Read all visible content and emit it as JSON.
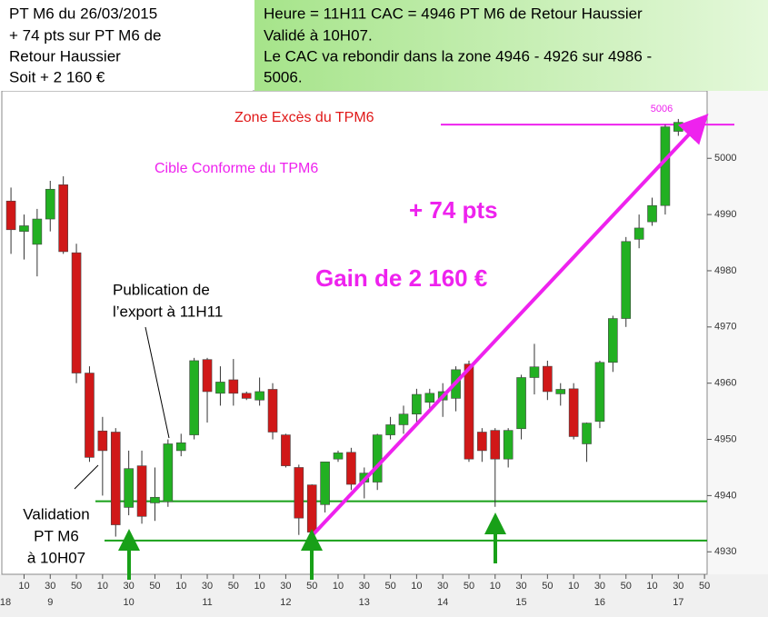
{
  "chart_data": {
    "type": "candlestick",
    "open": [
      4992.4,
      4987,
      4984.7,
      4989.2,
      4995.3,
      4983.2,
      4961.8,
      4951.5,
      4951.3,
      4937.9,
      4945.3,
      4938.7,
      4938.9,
      4948,
      4950.8,
      4964.2,
      4958.2,
      4960.6,
      4958.2,
      4957,
      4958.9,
      4950.8,
      4945,
      4941.9,
      4938.4,
      4946.5,
      4947.7,
      4942.4,
      4942.4,
      4950.8,
      4952.6,
      4954.5,
      4956.6,
      4957,
      4957.3,
      4963.4,
      4951.3,
      4951.6,
      4946.5,
      4951.9,
      4961,
      4963,
      4958.1,
      4959,
      4949.2,
      4953.2,
      4963.7,
      4971.5,
      4985.6,
      4988.7,
      4991.6,
      5004.8
    ],
    "high": [
      4994.8,
      4990,
      4991,
      4996,
      4996.8,
      4984.8,
      4963,
      4954,
      4952,
      4948,
      4948,
      4945,
      4950,
      4951,
      4964.5,
      4964.5,
      4963,
      4964.3,
      4958.5,
      4961,
      4960,
      4951,
      4945.5,
      4942,
      4946,
      4948,
      4948.5,
      4945,
      4951,
      4954,
      4956,
      4959,
      4959,
      4960,
      4963,
      4964,
      4952,
      4952,
      4952,
      4961.5,
      4967,
      4964,
      4960,
      4960,
      4953,
      4964,
      4972,
      4986,
      4990,
      4993,
      5006,
      5007
    ],
    "low": [
      4983,
      4982,
      4979,
      4987,
      4983,
      4960,
      4946,
      4940,
      4932.7,
      4936.5,
      4935,
      4935.5,
      4938,
      4947,
      4950,
      4953,
      4956,
      4956,
      4957,
      4956,
      4950,
      4945,
      4933,
      4932,
      4937,
      4946,
      4941,
      4939.5,
      4941,
      4950,
      4951,
      4953,
      4955,
      4954,
      4955,
      4946,
      4946,
      4938,
      4945,
      4950,
      4958,
      4957,
      4956,
      4950,
      4946,
      4952,
      4962,
      4970,
      4984,
      4988,
      4990,
      5004
    ],
    "close": [
      4987.3,
      4988,
      4989.2,
      4994.5,
      4983.4,
      4961.8,
      4946.8,
      4948,
      4934.8,
      4944.8,
      4936.3,
      4939.7,
      4949.2,
      4949.4,
      4964,
      4958.5,
      4960.2,
      4958.2,
      4957.3,
      4958.5,
      4951.3,
      4945.3,
      4936,
      4933.5,
      4946,
      4947.6,
      4942,
      4944,
      4950.8,
      4952.6,
      4954.5,
      4958,
      4958.2,
      4958.5,
      4962.4,
      4946.5,
      4948,
      4946.5,
      4951.6,
      4961,
      4962.9,
      4958.5,
      4958.9,
      4950.5,
      4952.9,
      4963.7,
      4971.5,
      4985.2,
      4987.6,
      4991.6,
      5005.6,
      5006.4
    ],
    "up_color": "#22b022",
    "down_color": "#d01818",
    "xlim": [
      -0.7,
      53.2
    ],
    "xticks": [
      {
        "value": 1,
        "label": "10"
      },
      {
        "value": 3,
        "label": "30"
      },
      {
        "value": 5,
        "label": "50"
      },
      {
        "value": 7,
        "label": "10"
      },
      {
        "value": 9,
        "label": "30"
      },
      {
        "value": 11,
        "label": "50"
      },
      {
        "value": 13,
        "label": "10"
      },
      {
        "value": 15,
        "label": "30"
      },
      {
        "value": 17,
        "label": "50"
      },
      {
        "value": 19,
        "label": "10"
      },
      {
        "value": 21,
        "label": "30"
      },
      {
        "value": 23,
        "label": "50"
      },
      {
        "value": 25,
        "label": "10"
      },
      {
        "value": 27,
        "label": "30"
      },
      {
        "value": 29,
        "label": "50"
      },
      {
        "value": 31,
        "label": "10"
      },
      {
        "value": 33,
        "label": "30"
      },
      {
        "value": 35,
        "label": "50"
      },
      {
        "value": 37,
        "label": "10"
      },
      {
        "value": 39,
        "label": "30"
      },
      {
        "value": 41,
        "label": "50"
      },
      {
        "value": 43,
        "label": "10"
      },
      {
        "value": 45,
        "label": "30"
      },
      {
        "value": 47,
        "label": "50"
      },
      {
        "value": 49,
        "label": "10"
      },
      {
        "value": 51,
        "label": "30"
      },
      {
        "value": 53,
        "label": "50"
      }
    ],
    "xticks_hour": [
      {
        "value": -0.5,
        "label": "18"
      },
      {
        "value": 3,
        "label": "9"
      },
      {
        "value": 9,
        "label": "10"
      },
      {
        "value": 15,
        "label": "11"
      },
      {
        "value": 21,
        "label": "12"
      },
      {
        "value": 27,
        "label": "13"
      },
      {
        "value": 33,
        "label": "14"
      },
      {
        "value": 39,
        "label": "15"
      },
      {
        "value": 45,
        "label": "16"
      },
      {
        "value": 51,
        "label": "17"
      }
    ],
    "ylim": [
      4926,
      5012
    ],
    "yticks": [
      4930,
      4940,
      4950,
      4960,
      4970,
      4980,
      4990,
      5000
    ],
    "levels": [
      4939,
      4932
    ],
    "level_color": "#18a018",
    "target": {
      "value": 5006,
      "label": "5006"
    },
    "target_color": "#ee22ee",
    "annotations": {
      "header_left": [
        "PT M6 du 26/03/2015",
        "+ 74 pts sur PT M6 de",
        "Retour Haussier",
        "Soit + 2 160 €"
      ],
      "header_right": [
        "Heure = 11H11 CAC = 4946  PT M6 de Retour Haussier",
        "Validé à 10H07.",
        "Le CAC va rebondir dans la zone 4946 - 4926 sur 4986 -",
        "5006."
      ],
      "zone": "Zone Excès du TPM6",
      "cible": "Cible Conforme du TPM6",
      "pts": "+ 74 pts",
      "gain": "Gain de 2 160 €",
      "publication": [
        "Publication de",
        "l’export à 11H11"
      ],
      "validation": [
        "Validation",
        "PT M6",
        "à 10H07"
      ]
    }
  }
}
